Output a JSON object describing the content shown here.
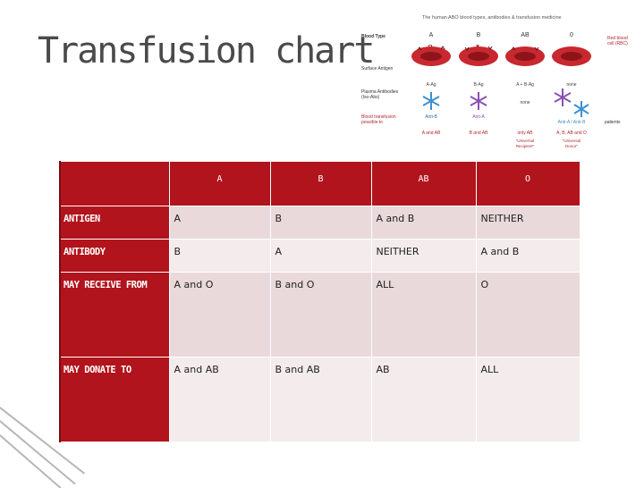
{
  "title": "Transfusion chart",
  "infographic": {
    "title": "The human ABO blood types, antibodies & transfusion medicine",
    "row_labels": {
      "blood_type": "Blood Type",
      "surface_antigen": "Surface Antigen",
      "plasma_antibodies_1": "Plasma Antibodies",
      "plasma_antibodies_2": "(Iso-Abs)",
      "donation_1": "Blood transfusion",
      "donation_2": "possible to"
    },
    "rbc_label_1": "Red blood",
    "rbc_label_2": "cell (RBC)",
    "patients": "patients",
    "columns": [
      {
        "type": "A",
        "antigen": "A-Ag",
        "antibody": "Anti-B",
        "donation": "A and AB",
        "note1": "",
        "note2": ""
      },
      {
        "type": "B",
        "antigen": "B-Ag",
        "antibody": "Anti-A",
        "donation": "B and AB",
        "note1": "",
        "note2": ""
      },
      {
        "type": "AB",
        "antigen": "A + B-Ag",
        "antibody": "none",
        "donation": "only AB",
        "note1": "\"Universal",
        "note2": "Recipient\""
      },
      {
        "type": "0",
        "antigen": "none",
        "antibody": "Anti-A / Anti-B",
        "donation": "A, B, AB and O",
        "note1": "\"Universal",
        "note2": "Donor\""
      }
    ],
    "colors": {
      "cell": "#c8282f",
      "cell_dark": "#8e141a",
      "anti_b": "#3d8fd0",
      "anti_a": "#8a4fb5"
    }
  },
  "table": {
    "header": [
      "A",
      "B",
      "AB",
      "O"
    ],
    "rows": [
      {
        "label": "ANTIGEN",
        "cells": [
          "A",
          "B",
          "A and B",
          "NEITHER"
        ]
      },
      {
        "label": "ANTIBODY",
        "cells": [
          "B",
          "A",
          "NEITHER",
          "A and B"
        ]
      },
      {
        "label": "MAY RECEIVE FROM",
        "cells": [
          "A and O",
          "B and O",
          "ALL",
          "O"
        ]
      },
      {
        "label": "MAY DONATE TO",
        "cells": [
          "A and AB",
          "B and AB",
          "AB",
          "ALL"
        ]
      }
    ],
    "colors": {
      "header": "#b1141c",
      "row_odd": "#e9d9da",
      "row_even": "#f4ecec"
    }
  }
}
